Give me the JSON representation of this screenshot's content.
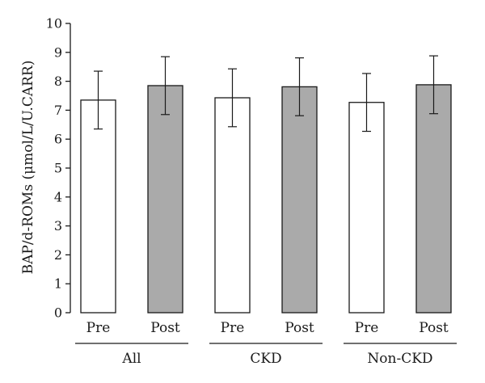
{
  "chart_data": {
    "type": "bar",
    "ylabel": "BAP/d-ROMs (μmol/L/U.CARR)",
    "ylim": [
      0,
      10
    ],
    "yticks": [
      0,
      1,
      2,
      3,
      4,
      5,
      6,
      7,
      8,
      9,
      10
    ],
    "groups": [
      {
        "label": "All",
        "bars": [
          {
            "category": "Pre",
            "value": 7.35,
            "error": 1.0,
            "color": "#ffffff"
          },
          {
            "category": "Post",
            "value": 7.85,
            "error": 1.0,
            "color": "#aaaaaa"
          }
        ]
      },
      {
        "label": "CKD",
        "bars": [
          {
            "category": "Pre",
            "value": 7.43,
            "error": 1.0,
            "color": "#ffffff"
          },
          {
            "category": "Post",
            "value": 7.81,
            "error": 1.0,
            "color": "#aaaaaa"
          }
        ]
      },
      {
        "label": "Non-CKD",
        "bars": [
          {
            "category": "Pre",
            "value": 7.27,
            "error": 1.0,
            "color": "#ffffff"
          },
          {
            "category": "Post",
            "value": 7.88,
            "error": 1.0,
            "color": "#aaaaaa"
          }
        ]
      }
    ],
    "legend": "none",
    "grid": false
  }
}
